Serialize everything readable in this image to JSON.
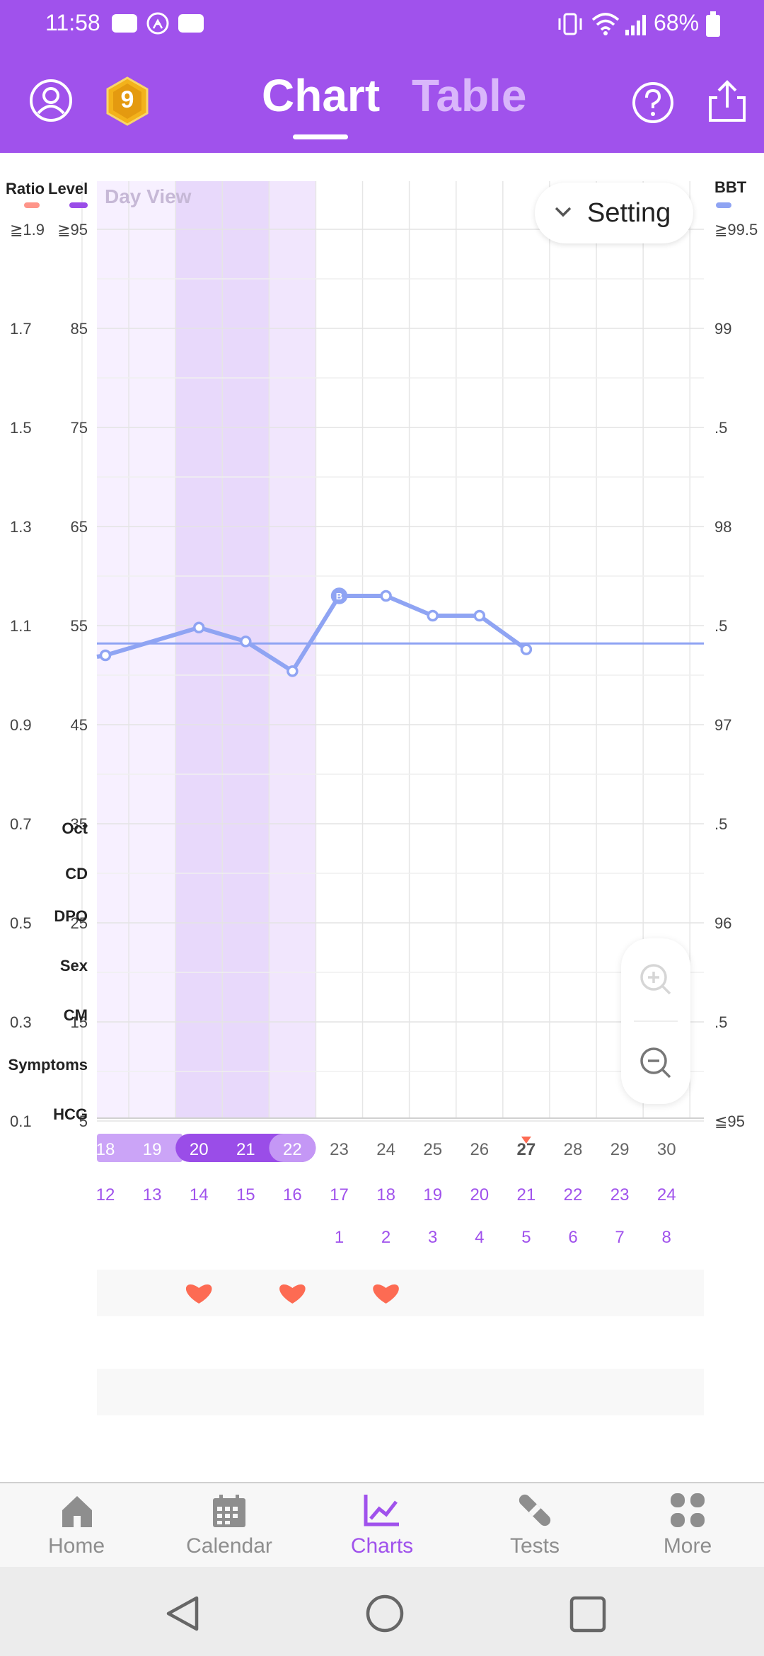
{
  "status_bar": {
    "time": "11:58",
    "battery": "68%"
  },
  "header": {
    "badge_number": "9",
    "tabs": [
      {
        "label": "Chart",
        "active": true
      },
      {
        "label": "Table",
        "active": false
      }
    ]
  },
  "chart_data": {
    "type": "line",
    "view_label": "Day View",
    "setting_label": "Setting",
    "left_axis_labels": {
      "ratio": "Ratio",
      "level": "Level"
    },
    "right_axis_label": "BBT",
    "ratio_ticks": [
      "≧1.9",
      "1.7",
      "1.5",
      "1.3",
      "1.1",
      "0.9",
      "0.7",
      "0.5",
      "0.3",
      "0.1"
    ],
    "level_ticks": [
      "≧95",
      "85",
      "75",
      "65",
      "55",
      "45",
      "35",
      "25",
      "15",
      "5"
    ],
    "bbt_ticks": [
      "≧99.5",
      "99",
      ".5",
      "98",
      ".5",
      "97",
      ".5",
      "96",
      ".5",
      "≦95"
    ],
    "ylim": [
      95,
      99.5
    ],
    "month": "Oct",
    "days": [
      "18",
      "19",
      "20",
      "21",
      "22",
      "23",
      "24",
      "25",
      "26",
      "27",
      "28",
      "29",
      "30"
    ],
    "today": "27",
    "cycle_days": [
      "12",
      "13",
      "14",
      "15",
      "16",
      "17",
      "18",
      "19",
      "20",
      "21",
      "22",
      "23",
      "24"
    ],
    "dpo": [
      "",
      "",
      "",
      "",
      "",
      "1",
      "2",
      "3",
      "4",
      "5",
      "6",
      "7",
      "8"
    ],
    "sex_days": [
      "20",
      "22",
      "24"
    ],
    "coverline": 97.41,
    "series": [
      {
        "name": "BBT",
        "x": [
          "18",
          "20",
          "21",
          "22",
          "23",
          "24",
          "25",
          "26",
          "27"
        ],
        "values": [
          97.35,
          97.49,
          97.42,
          97.27,
          97.65,
          97.65,
          97.55,
          97.55,
          97.38
        ]
      }
    ],
    "colors": {
      "bbt": "#8fa4f3",
      "fertile_light": "#f7f0ff",
      "fertile_dark": "#e8d9fb",
      "fertile_mid": "#f1e6fd",
      "accent": "#a052ec",
      "heart": "#fd6b53"
    }
  },
  "rows": {
    "date": "Oct",
    "cd": "CD",
    "dpo": "DPO",
    "sex": "Sex",
    "cm": "CM",
    "symptoms": "Symptoms",
    "hcg": "HCG"
  },
  "bottom_nav": [
    {
      "label": "Home",
      "icon": "home-icon"
    },
    {
      "label": "Calendar",
      "icon": "calendar-icon"
    },
    {
      "label": "Charts",
      "icon": "charts-icon",
      "active": true
    },
    {
      "label": "Tests",
      "icon": "tests-icon"
    },
    {
      "label": "More",
      "icon": "more-icon"
    }
  ]
}
